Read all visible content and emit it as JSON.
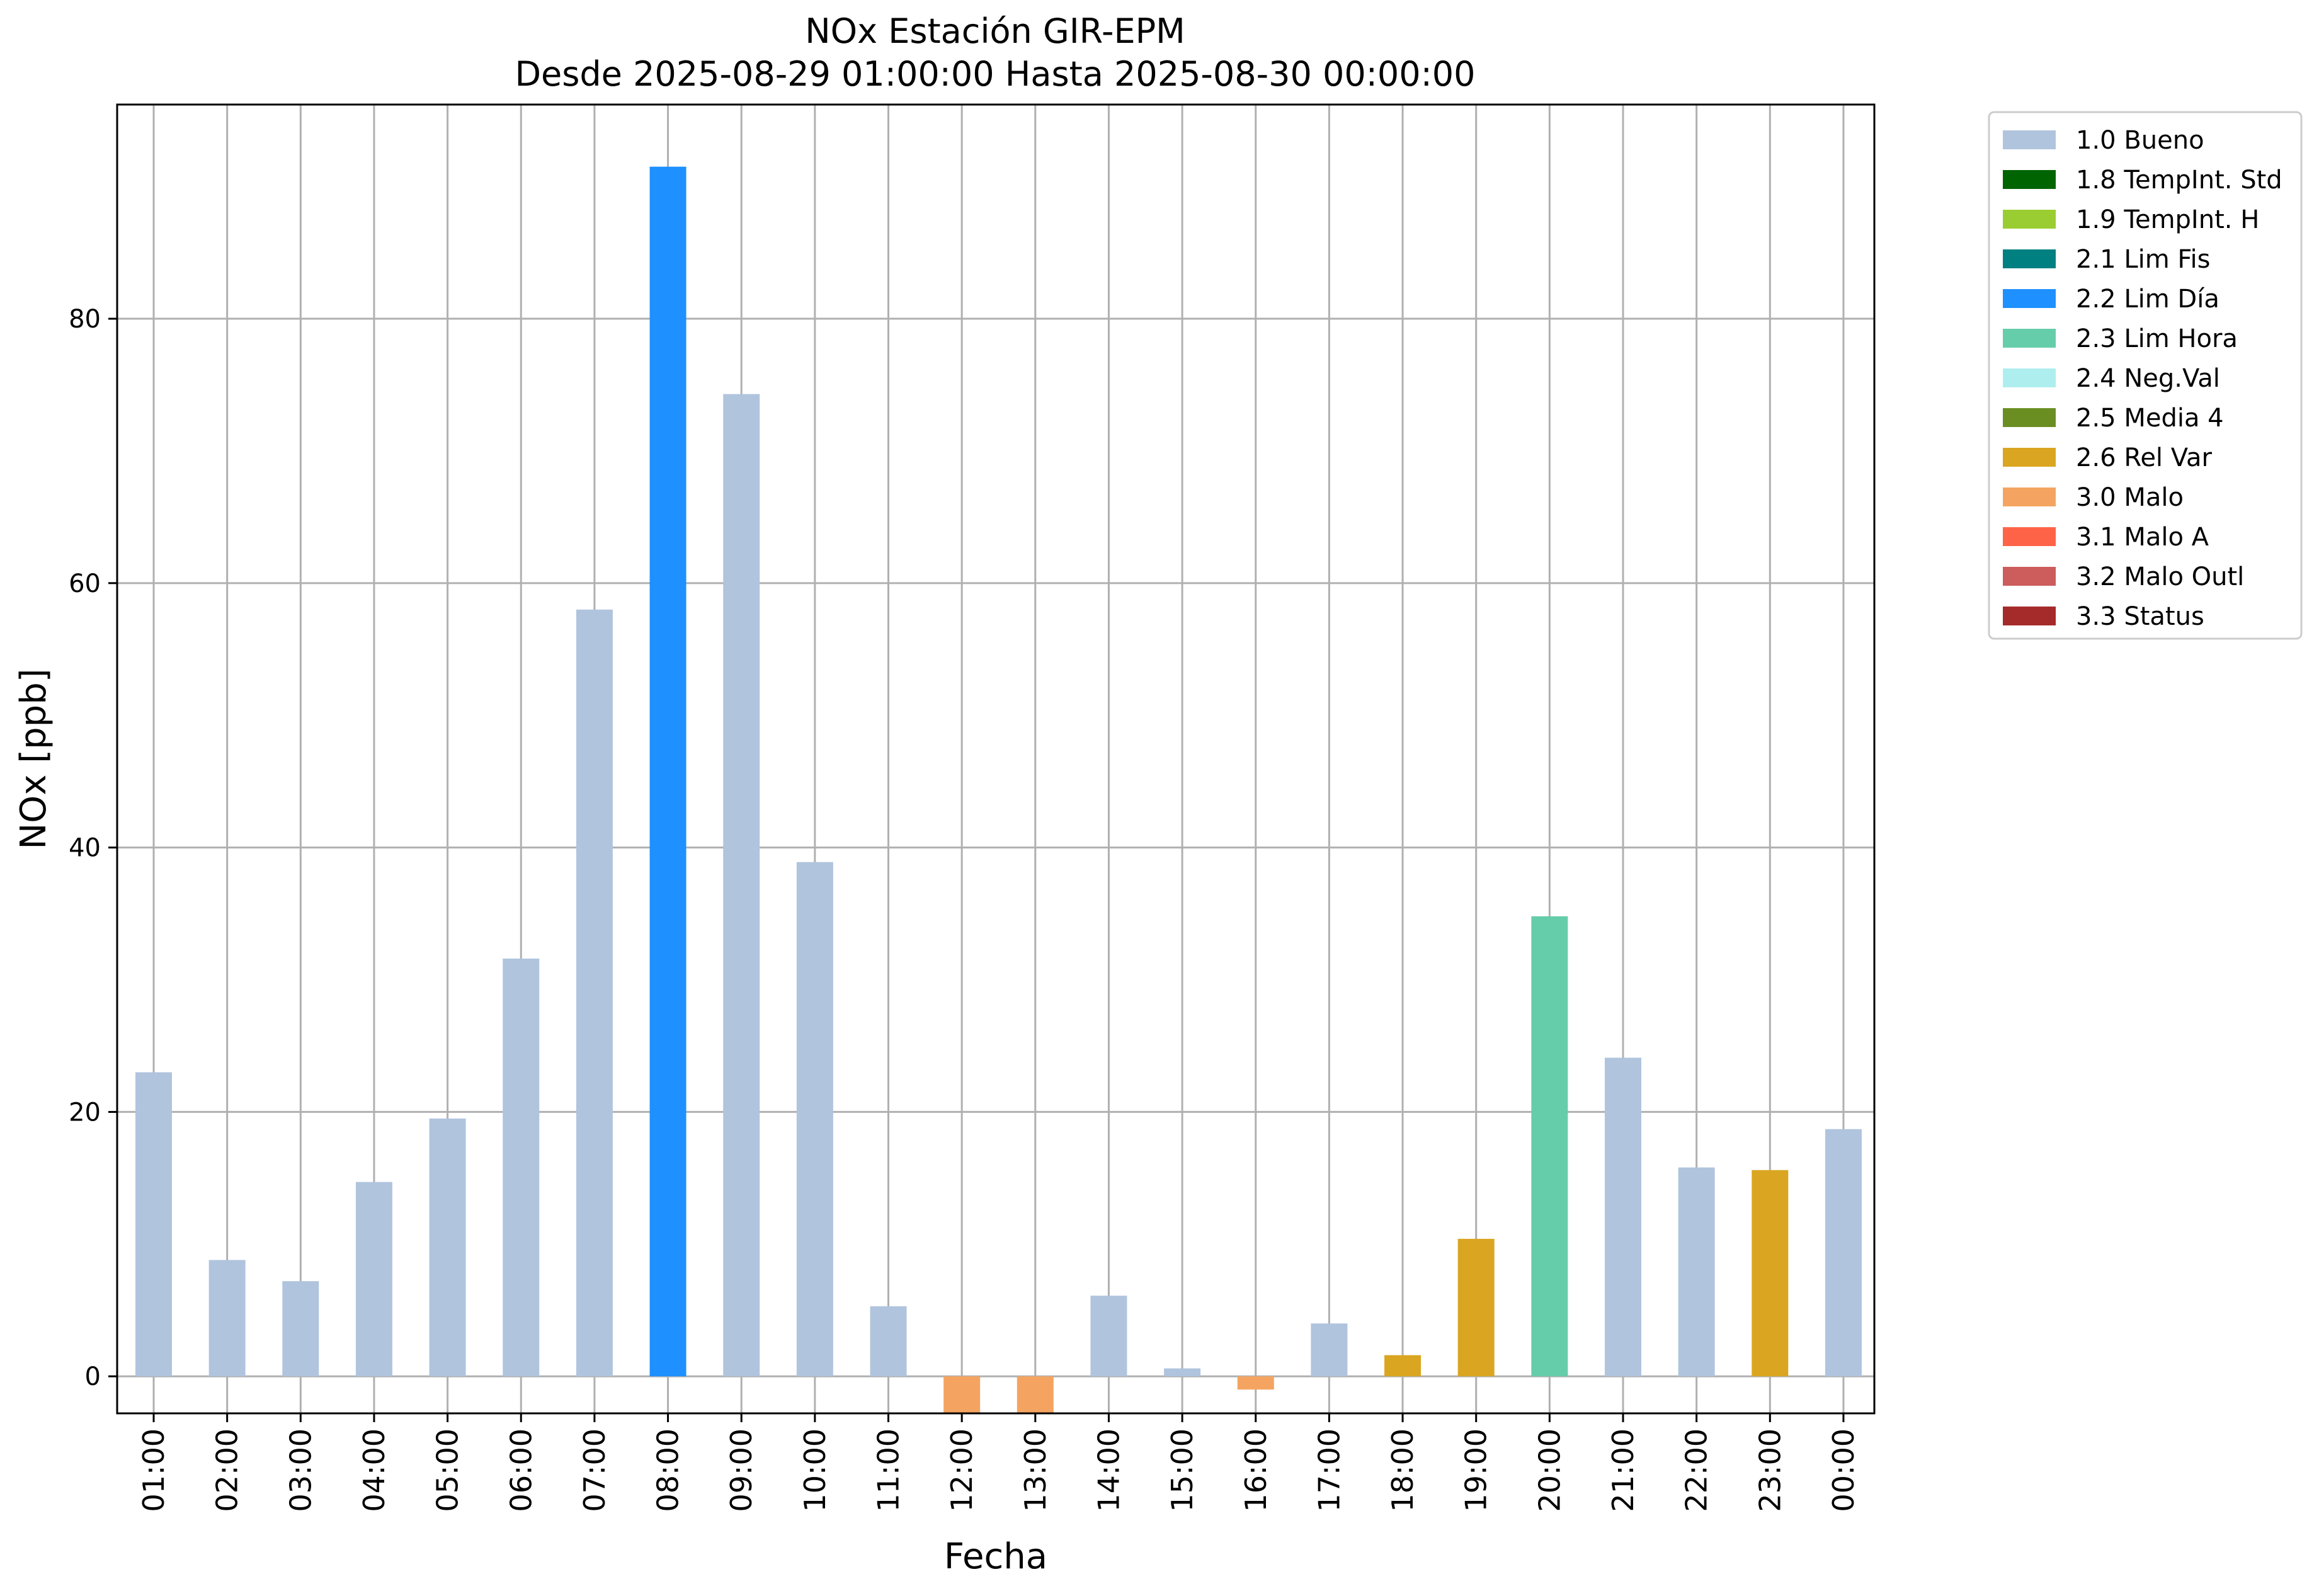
{
  "chart_data": {
    "type": "bar",
    "title_line1": "NOx Estación GIR-EPM",
    "title_line2": "Desde 2025-08-29 01:00:00 Hasta 2025-08-30 00:00:00",
    "xlabel": "Fecha",
    "ylabel": "NOx [ppb]",
    "ylim": [
      -2.8,
      96.2
    ],
    "yticks": [
      0,
      20,
      40,
      60,
      80
    ],
    "grid": true,
    "legend_position": "outside-top-right",
    "categories": [
      "01:00",
      "02:00",
      "03:00",
      "04:00",
      "05:00",
      "06:00",
      "07:00",
      "08:00",
      "09:00",
      "10:00",
      "11:00",
      "12:00",
      "13:00",
      "14:00",
      "15:00",
      "16:00",
      "17:00",
      "18:00",
      "19:00",
      "20:00",
      "21:00",
      "22:00",
      "23:00",
      "00:00"
    ],
    "values": [
      23.0,
      8.8,
      7.2,
      14.7,
      19.5,
      31.6,
      58.0,
      91.5,
      74.3,
      38.9,
      5.3,
      -2.8,
      -2.8,
      6.1,
      0.6,
      -1.0,
      4.0,
      1.6,
      10.4,
      34.8,
      24.1,
      15.8,
      15.6,
      18.7
    ],
    "flags": [
      "1.0 Bueno",
      "1.0 Bueno",
      "1.0 Bueno",
      "1.0 Bueno",
      "1.0 Bueno",
      "1.0 Bueno",
      "1.0 Bueno",
      "2.2 Lim Día",
      "1.0 Bueno",
      "1.0 Bueno",
      "1.0 Bueno",
      "3.0 Malo",
      "3.0 Malo",
      "1.0 Bueno",
      "1.0 Bueno",
      "3.0 Malo",
      "1.0 Bueno",
      "2.6 Rel Var",
      "2.6 Rel Var",
      "2.3 Lim Hora",
      "1.0 Bueno",
      "1.0 Bueno",
      "2.6 Rel Var",
      "1.0 Bueno"
    ],
    "legend": [
      {
        "label": "1.0 Bueno",
        "color": "#b0c4de"
      },
      {
        "label": "1.8 TempInt. Std",
        "color": "#006400"
      },
      {
        "label": "1.9 TempInt. H",
        "color": "#9acd32"
      },
      {
        "label": "2.1 Lim Fis",
        "color": "#008080"
      },
      {
        "label": "2.2 Lim Día",
        "color": "#1e90ff"
      },
      {
        "label": "2.3 Lim Hora",
        "color": "#66cdaa"
      },
      {
        "label": "2.4 Neg.Val",
        "color": "#afeeee"
      },
      {
        "label": "2.5 Media 4",
        "color": "#6b8e23"
      },
      {
        "label": "2.6 Rel Var",
        "color": "#daa520"
      },
      {
        "label": "3.0 Malo",
        "color": "#f4a460"
      },
      {
        "label": "3.1 Malo A",
        "color": "#ff6347"
      },
      {
        "label": "3.2 Malo Outl",
        "color": "#cd5c5c"
      },
      {
        "label": "3.3 Status",
        "color": "#a52a2a"
      }
    ]
  }
}
